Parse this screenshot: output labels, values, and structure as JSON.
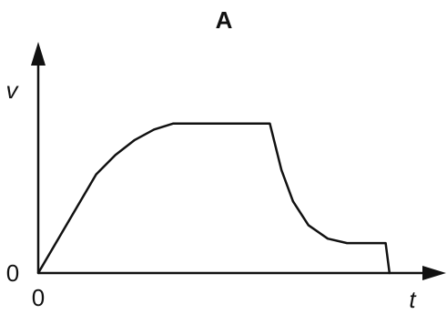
{
  "chart_data": {
    "type": "line",
    "title": "A",
    "xlabel": "t",
    "ylabel": "v",
    "x_tick_labels": [
      "0"
    ],
    "y_tick_labels": [
      "0"
    ],
    "xlim": [
      0,
      10
    ],
    "ylim": [
      0,
      1.4
    ],
    "grid": false,
    "legend": "none",
    "colors": {
      "line": "#111111",
      "axes": "#111111"
    },
    "series": [
      {
        "points": [
          {
            "x": 0,
            "y": 0
          },
          {
            "x": 1.5,
            "y": 0.66
          },
          {
            "x": 2.0,
            "y": 0.79
          },
          {
            "x": 2.5,
            "y": 0.89
          },
          {
            "x": 3.0,
            "y": 0.96
          },
          {
            "x": 3.5,
            "y": 1.0
          },
          {
            "x": 6.0,
            "y": 1.0
          },
          {
            "x": 6.3,
            "y": 0.69
          },
          {
            "x": 6.6,
            "y": 0.48
          },
          {
            "x": 7.0,
            "y": 0.32
          },
          {
            "x": 7.5,
            "y": 0.23
          },
          {
            "x": 8.0,
            "y": 0.2
          },
          {
            "x": 9.0,
            "y": 0.2
          },
          {
            "x": 9.1,
            "y": 0.0
          }
        ]
      }
    ]
  }
}
